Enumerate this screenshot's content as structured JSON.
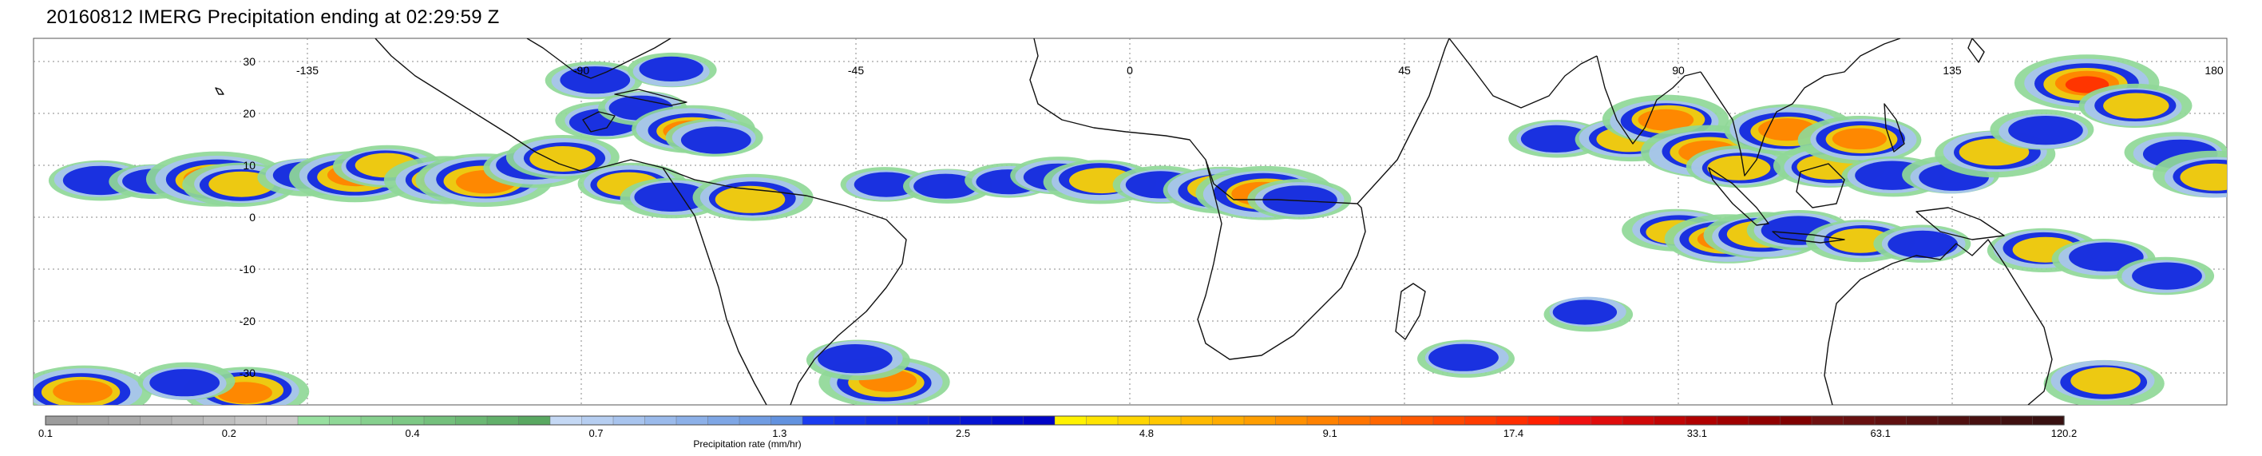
{
  "title": "20160812 IMERG Precipitation ending at 02:29:59 Z",
  "map": {
    "projection": "equirectangular",
    "lon_range": [
      -180,
      180
    ],
    "lat_range": [
      -40,
      40
    ],
    "lon_ticks": [
      "-135",
      "-90",
      "-45",
      "0",
      "45",
      "90",
      "135",
      "180"
    ],
    "lat_ticks": [
      "30",
      "20",
      "10",
      "0",
      "-10",
      "-20",
      "-30"
    ],
    "gridlines": "dotted",
    "land_color": "#ffffff",
    "coast_color": "#000000"
  },
  "colorbar": {
    "title": "Precipitation rate (mm/hr)",
    "tick_labels": [
      "0.1",
      "0.2",
      "0.4",
      "0.7",
      "1.3",
      "2.5",
      "4.8",
      "9.1",
      "17.4",
      "33.1",
      "63.1",
      "120.2"
    ],
    "colors": [
      "#9c9c9c",
      "#a3a3a3",
      "#aaaaaa",
      "#b1b1b1",
      "#b8b8b8",
      "#bfbfbf",
      "#c6c6c6",
      "#cdcdcd",
      "#98e0a0",
      "#8fd897",
      "#86d08e",
      "#7dc885",
      "#74c07c",
      "#6bb873",
      "#62b06a",
      "#59a861",
      "#c4d8f4",
      "#b6cef1",
      "#a8c4ee",
      "#9abaeb",
      "#8cb0e8",
      "#7ea6e5",
      "#709ce2",
      "#6292df",
      "#1a3cf0",
      "#1634ea",
      "#122ce4",
      "#0e24de",
      "#0a1cd8",
      "#0614d2",
      "#020ccc",
      "#0004c6",
      "#fff200",
      "#ffe400",
      "#ffd600",
      "#ffc800",
      "#ffba00",
      "#ffac00",
      "#ff9e00",
      "#ff9000",
      "#ff8200",
      "#ff7400",
      "#ff6600",
      "#ff5800",
      "#ff4a00",
      "#ff3c00",
      "#ff2e00",
      "#ff2000",
      "#f01010",
      "#e00c0c",
      "#d00808",
      "#c00404",
      "#b00000",
      "#a00000",
      "#900000",
      "#800000",
      "#701010",
      "#681010",
      "#601010",
      "#581010",
      "#501010",
      "#481010",
      "#401010",
      "#381010"
    ]
  },
  "precip_cells": [
    {
      "lon": -169,
      "lat": 9,
      "mm": 4
    },
    {
      "lon": -160,
      "lat": 9,
      "mm": 2
    },
    {
      "lon": -150,
      "lat": 9,
      "mm": 18
    },
    {
      "lon": -146,
      "lat": 8,
      "mm": 6
    },
    {
      "lon": -135,
      "lat": 10,
      "mm": 3
    },
    {
      "lon": -127,
      "lat": 10,
      "mm": 12
    },
    {
      "lon": -122,
      "lat": 12,
      "mm": 5
    },
    {
      "lon": -112,
      "lat": 9,
      "mm": 9
    },
    {
      "lon": -106,
      "lat": 9,
      "mm": 15
    },
    {
      "lon": -98,
      "lat": 12,
      "mm": 4
    },
    {
      "lon": -93,
      "lat": 14,
      "mm": 6
    },
    {
      "lon": -86,
      "lat": 22,
      "mm": 3
    },
    {
      "lon": -80,
      "lat": 25,
      "mm": 2
    },
    {
      "lon": -72,
      "lat": 20,
      "mm": 9
    },
    {
      "lon": -68,
      "lat": 18,
      "mm": 3
    },
    {
      "lon": -82,
      "lat": 8,
      "mm": 5
    },
    {
      "lon": -75,
      "lat": 5,
      "mm": 4
    },
    {
      "lon": -62,
      "lat": 5,
      "mm": 8
    },
    {
      "lon": -88,
      "lat": 31,
      "mm": 3
    },
    {
      "lon": -75,
      "lat": 33,
      "mm": 2
    },
    {
      "lon": -40,
      "lat": 8,
      "mm": 2
    },
    {
      "lon": -30,
      "lat": 8,
      "mm": 2
    },
    {
      "lon": -20,
      "lat": 9,
      "mm": 2
    },
    {
      "lon": -12,
      "lat": 10,
      "mm": 3
    },
    {
      "lon": -5,
      "lat": 9,
      "mm": 6
    },
    {
      "lon": 5,
      "lat": 8,
      "mm": 3
    },
    {
      "lon": 15,
      "lat": 7,
      "mm": 8
    },
    {
      "lon": 22,
      "lat": 6,
      "mm": 16
    },
    {
      "lon": 28,
      "lat": 5,
      "mm": 4
    },
    {
      "lon": 70,
      "lat": 18,
      "mm": 3
    },
    {
      "lon": 82,
      "lat": 18,
      "mm": 6
    },
    {
      "lon": 88,
      "lat": 22,
      "mm": 10
    },
    {
      "lon": 95,
      "lat": 15,
      "mm": 14
    },
    {
      "lon": 100,
      "lat": 12,
      "mm": 5
    },
    {
      "lon": 108,
      "lat": 20,
      "mm": 12
    },
    {
      "lon": 115,
      "lat": 12,
      "mm": 6
    },
    {
      "lon": 120,
      "lat": 18,
      "mm": 9
    },
    {
      "lon": 125,
      "lat": 10,
      "mm": 4
    },
    {
      "lon": 135,
      "lat": 10,
      "mm": 3
    },
    {
      "lon": 142,
      "lat": 15,
      "mm": 8
    },
    {
      "lon": 150,
      "lat": 20,
      "mm": 4
    },
    {
      "lon": 157,
      "lat": 30,
      "mm": 20
    },
    {
      "lon": 165,
      "lat": 25,
      "mm": 6
    },
    {
      "lon": 172,
      "lat": 15,
      "mm": 4
    },
    {
      "lon": 178,
      "lat": 10,
      "mm": 8
    },
    {
      "lon": 90,
      "lat": -2,
      "mm": 5
    },
    {
      "lon": 98,
      "lat": -4,
      "mm": 10
    },
    {
      "lon": 104,
      "lat": -3,
      "mm": 8
    },
    {
      "lon": 110,
      "lat": -2,
      "mm": 4
    },
    {
      "lon": 120,
      "lat": -4,
      "mm": 5
    },
    {
      "lon": 130,
      "lat": -5,
      "mm": 3
    },
    {
      "lon": 150,
      "lat": -6,
      "mm": 6
    },
    {
      "lon": 160,
      "lat": -8,
      "mm": 4
    },
    {
      "lon": 170,
      "lat": -12,
      "mm": 3
    },
    {
      "lon": -40,
      "lat": -35,
      "mm": 12
    },
    {
      "lon": -45,
      "lat": -30,
      "mm": 4
    },
    {
      "lon": -172,
      "lat": -37,
      "mm": 14
    },
    {
      "lon": -145,
      "lat": -37,
      "mm": 10
    },
    {
      "lon": -155,
      "lat": -35,
      "mm": 3
    },
    {
      "lon": 55,
      "lat": -30,
      "mm": 3
    },
    {
      "lon": 75,
      "lat": -20,
      "mm": 2
    },
    {
      "lon": 160,
      "lat": -35,
      "mm": 8
    }
  ]
}
